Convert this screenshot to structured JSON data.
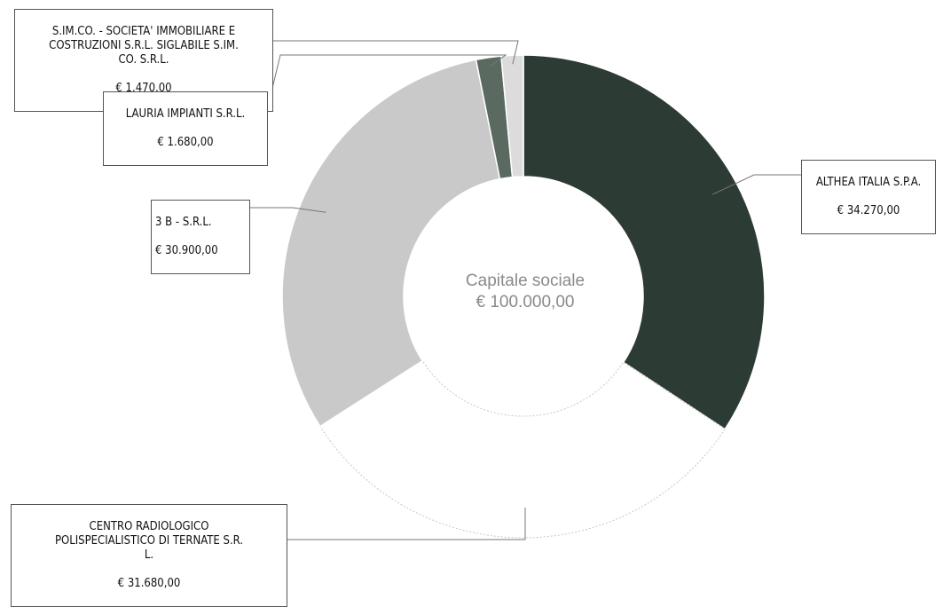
{
  "chart_data": {
    "type": "pie",
    "variant": "donut",
    "center_label": {
      "line1": "Capitale sociale",
      "line2": "€ 100.000,00"
    },
    "total": 100000.0,
    "slices": [
      {
        "name": "ALTHEA ITALIA S.P.A.",
        "value_label": "€ 34.270,00",
        "value": 34270.0,
        "color": "#2c3b33"
      },
      {
        "name": "CENTRO RADIOLOGICO\nPOLISPECIALISTICO DI TERNATE S.R.\nL.",
        "value_label": "€ 31.680,00",
        "value": 31680.0,
        "color": "#ffffff"
      },
      {
        "name": "3 B - S.R.L.",
        "value_label": "€ 30.900,00",
        "value": 30900.0,
        "color": "#c9c9c9"
      },
      {
        "name": "LAURIA IMPIANTI S.R.L.",
        "value_label": "€ 1.680,00",
        "value": 1680.0,
        "color": "#5b6a61"
      },
      {
        "name": "S.IM.CO. - SOCIETA' IMMOBILIARE E\nCOSTRUZIONI S.R.L. SIGLABILE S.IM.\nCO. S.R.L.",
        "value_label": "€ 1.470,00",
        "value": 1470.0,
        "color": "#dcdcdc"
      }
    ],
    "legend": "callout-labels"
  }
}
